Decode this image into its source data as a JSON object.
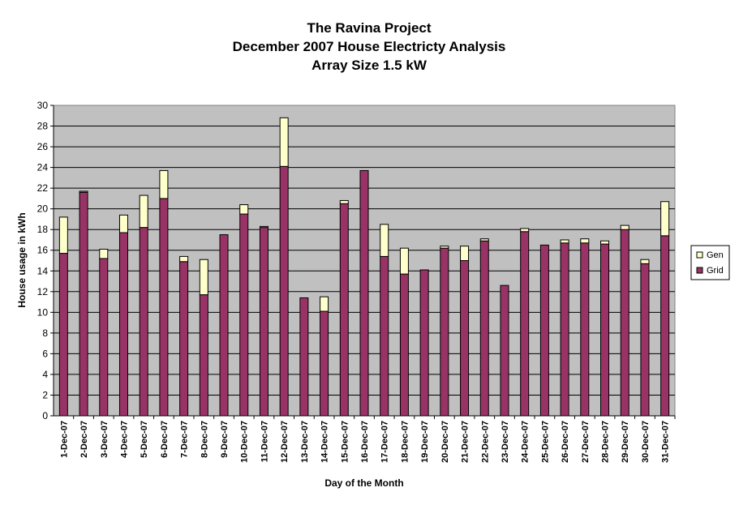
{
  "chart_data": {
    "type": "bar",
    "stacked": true,
    "title": [
      "The Ravina Project",
      "December 2007 House Electricty Analysis",
      "Array Size 1.5 kW"
    ],
    "xlabel": "Day of the Month",
    "ylabel": "House usage in kWh",
    "ylim": [
      0,
      30
    ],
    "yticks": [
      0,
      2,
      4,
      6,
      8,
      10,
      12,
      14,
      16,
      18,
      20,
      22,
      24,
      26,
      28,
      30
    ],
    "grid": true,
    "legend_position": "right",
    "categories": [
      "1-Dec-07",
      "2-Dec-07",
      "3-Dec-07",
      "4-Dec-07",
      "5-Dec-07",
      "6-Dec-07",
      "7-Dec-07",
      "8-Dec-07",
      "9-Dec-07",
      "10-Dec-07",
      "11-Dec-07",
      "12-Dec-07",
      "13-Dec-07",
      "14-Dec-07",
      "15-Dec-07",
      "16-Dec-07",
      "17-Dec-07",
      "18-Dec-07",
      "19-Dec-07",
      "20-Dec-07",
      "21-Dec-07",
      "22-Dec-07",
      "23-Dec-07",
      "24-Dec-07",
      "25-Dec-07",
      "26-Dec-07",
      "27-Dec-07",
      "28-Dec-07",
      "29-Dec-07",
      "30-Dec-07",
      "31-Dec-07"
    ],
    "series": [
      {
        "name": "Grid",
        "color": "#993366",
        "values": [
          15.7,
          21.6,
          15.2,
          17.7,
          18.2,
          21.0,
          14.9,
          11.7,
          17.5,
          19.5,
          18.2,
          24.1,
          11.4,
          10.1,
          20.5,
          23.7,
          15.4,
          13.7,
          14.1,
          16.2,
          15.0,
          16.9,
          12.6,
          17.8,
          16.5,
          16.7,
          16.7,
          16.6,
          18.0,
          14.7,
          17.4
        ]
      },
      {
        "name": "Gen",
        "color": "#FFFFCC",
        "values": [
          3.5,
          0.1,
          0.9,
          1.7,
          3.1,
          2.7,
          0.5,
          3.4,
          0.0,
          0.9,
          0.1,
          4.7,
          0.0,
          1.4,
          0.3,
          0.0,
          3.1,
          2.5,
          0.0,
          0.2,
          1.4,
          0.2,
          0.0,
          0.3,
          0.0,
          0.3,
          0.4,
          0.3,
          0.4,
          0.4,
          3.3
        ]
      }
    ],
    "legend_order": [
      "Gen",
      "Grid"
    ],
    "plot_background": "#C0C0C0"
  }
}
